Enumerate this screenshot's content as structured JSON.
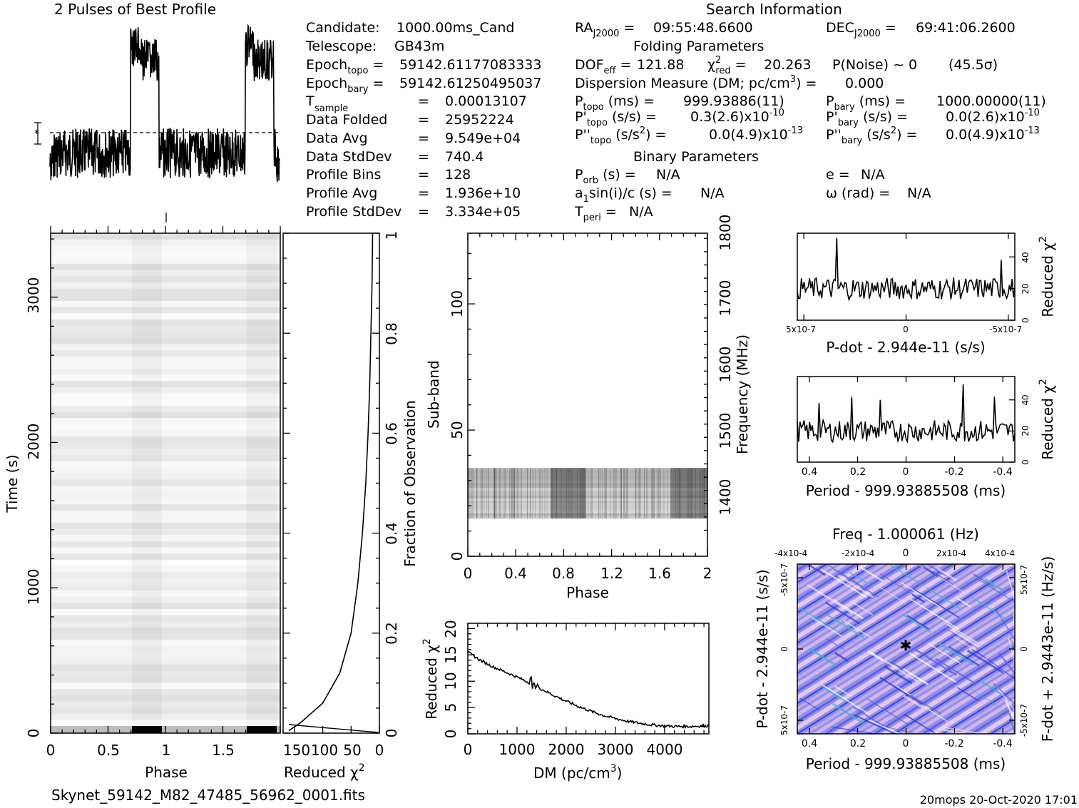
{
  "header": {
    "profile_title": "2 Pulses of Best Profile",
    "search_title": "Search Information",
    "folding_title": "Folding Parameters",
    "binary_title": "Binary Parameters",
    "filename": "Skynet_59142_M82_47485_56962_0001.fits",
    "footer": "20mops 20-Oct-2020 17:01"
  },
  "info": {
    "candidate": "1000.00ms_Cand",
    "telescope": "GB43m",
    "epoch_topo": "59142.61177083333",
    "epoch_bary": "59142.61250495037",
    "t_sample": "0.00013107",
    "data_folded": "25952224",
    "data_avg": "9.549e+04",
    "data_stddev": "740.4",
    "profile_bins": "128",
    "profile_avg": "1.936e+10",
    "profile_stddev": "3.334e+05",
    "ra": "09:55:48.6600",
    "dec": "69:41:06.2600",
    "dof_eff": "121.88",
    "chi2_red": "20.263",
    "p_noise": "P(Noise) ~ 0",
    "sigma": "(45.5σ)",
    "dm": "0.000",
    "p_topo": "999.93886(11)",
    "p_bary": "1000.00000(11)",
    "pd_topo": "0.3(2.6)x10",
    "pd_topo_exp": "-10",
    "pd_bary": "0.0(2.6)x10",
    "pd_bary_exp": "-10",
    "pdd_topo": "0.0(4.9)x10",
    "pdd_topo_exp": "-13",
    "pdd_bary": "0.0(4.9)x10",
    "pdd_bary_exp": "-13",
    "p_orb": "N/A",
    "a1sini": "N/A",
    "t_peri": "N/A",
    "e": "N/A",
    "omega": "N/A"
  },
  "labels": {
    "candidate": "Candidate:",
    "telescope": "Telescope:",
    "t_sample": "T",
    "t_sample_sub": "sample",
    "data_folded": "Data Folded",
    "data_avg": "Data Avg",
    "data_stddev": "Data StdDev",
    "profile_bins": "Profile Bins",
    "profile_avg": "Profile Avg",
    "profile_stddev": "Profile StdDev",
    "eq": "="
  },
  "chart_data": [
    {
      "id": "pulse-profile",
      "type": "line",
      "title": "2 Pulses of Best Profile",
      "xlim": [
        0,
        2
      ],
      "note": "two pulses, peaks near phase 0.7-0.95 and 1.7-1.95"
    },
    {
      "id": "time-phase",
      "type": "heatmap",
      "xlabel": "Phase",
      "ylabel": "Time (s)",
      "xlim": [
        0,
        2
      ],
      "ylim": [
        0,
        3400
      ],
      "x_ticks": [
        "0",
        "0.5",
        "1",
        "1.5"
      ],
      "y_ticks": [
        "0",
        "1000",
        "2000",
        "3000"
      ]
    },
    {
      "id": "time-chi2",
      "type": "line",
      "xlabel": "Reduced χ²",
      "ylabel": "Fraction of Observation",
      "x_ticks": [
        "150",
        "100",
        "50",
        "0"
      ],
      "y_ticks": [
        "0",
        "0.2",
        "0.4",
        "0.6",
        "0.8",
        "1"
      ],
      "xlim": [
        170,
        0
      ],
      "ylim": [
        0,
        1
      ],
      "points": [
        [
          160,
          0.005
        ],
        [
          140,
          0.02
        ],
        [
          100,
          0.06
        ],
        [
          70,
          0.12
        ],
        [
          50,
          0.2
        ],
        [
          38,
          0.3
        ],
        [
          30,
          0.4
        ],
        [
          24,
          0.5
        ],
        [
          20,
          0.6
        ],
        [
          17,
          0.7
        ],
        [
          15,
          0.8
        ],
        [
          13,
          0.9
        ],
        [
          12,
          1.0
        ]
      ]
    },
    {
      "id": "subband-phase",
      "type": "heatmap",
      "xlabel": "Phase",
      "ylabel": "Sub-band",
      "ylabel2": "Frequency (MHz)",
      "xlim": [
        0,
        2
      ],
      "ylim": [
        0,
        128
      ],
      "x_ticks": [
        "0",
        "0.4",
        "0.8",
        "1.2",
        "1.6",
        "2"
      ],
      "y_ticks": [
        "0",
        "50",
        "100"
      ],
      "y2_ticks": [
        "1400",
        "1500",
        "1600",
        "1700",
        "1800"
      ],
      "data_subbands": [
        15,
        35
      ]
    },
    {
      "id": "dm-chi2",
      "type": "line",
      "xlabel": "DM (pc/cm³)",
      "ylabel": "Reduced χ²",
      "xlim": [
        0,
        4900
      ],
      "ylim": [
        0,
        21
      ],
      "x_ticks": [
        "0",
        "1000",
        "2000",
        "3000",
        "4000"
      ],
      "y_ticks": [
        "0",
        "5",
        "10",
        "15",
        "20"
      ],
      "points": [
        [
          0,
          15.5
        ],
        [
          250,
          14
        ],
        [
          500,
          12.8
        ],
        [
          750,
          11.8
        ],
        [
          1000,
          10.8
        ],
        [
          1250,
          9.7
        ],
        [
          1500,
          8.5
        ],
        [
          1750,
          7.3
        ],
        [
          2000,
          6.2
        ],
        [
          2250,
          5.2
        ],
        [
          2500,
          4.3
        ],
        [
          2750,
          3.5
        ],
        [
          3000,
          2.9
        ],
        [
          3250,
          2.4
        ],
        [
          3500,
          2.0
        ],
        [
          3750,
          1.7
        ],
        [
          4000,
          1.5
        ],
        [
          4250,
          1.4
        ],
        [
          4500,
          1.4
        ],
        [
          4750,
          1.5
        ],
        [
          4900,
          1.5
        ]
      ]
    },
    {
      "id": "pdot-chi2",
      "type": "line",
      "xlabel": "P-dot - 2.944e-11 (s/s)",
      "ylabel": "Reduced χ²",
      "x_ticks": [
        "5x10-7",
        "0",
        "-5x10-7"
      ],
      "y_ticks": [
        "0",
        "20",
        "40"
      ],
      "xlim": [
        5e-07,
        -5e-07
      ],
      "ylim": [
        0,
        55
      ]
    },
    {
      "id": "period-chi2",
      "type": "line",
      "xlabel": "Period - 999.93885508 (ms)",
      "ylabel": "Reduced χ²",
      "x_ticks": [
        "0.4",
        "0.2",
        "0",
        "-0.2",
        "-0.4"
      ],
      "y_ticks": [
        "0",
        "20",
        "40"
      ],
      "xlim": [
        0.45,
        -0.45
      ],
      "ylim": [
        0,
        55
      ]
    },
    {
      "id": "p-pdot-plane",
      "type": "heatmap",
      "title": "Freq - 1.000061 (Hz)",
      "xlabel": "Period - 999.93885508 (ms)",
      "ylabel": "P-dot - 2.944e-11 (s/s)",
      "ylabel2": "F-dot + 2.9443e-11 (Hz/s)",
      "x_ticks": [
        "0.4",
        "0.2",
        "0",
        "-0.2",
        "-0.4"
      ],
      "top_ticks": [
        "-4x10-4",
        "-2x10-4",
        "0",
        "2x10-4",
        "4x10-4"
      ],
      "y_ticks": [
        "-5x10-7",
        "0",
        "5x10-7"
      ],
      "y2_ticks": [
        "5x10-7",
        "0",
        "-5x10-7"
      ],
      "best": [
        0,
        0
      ]
    }
  ]
}
